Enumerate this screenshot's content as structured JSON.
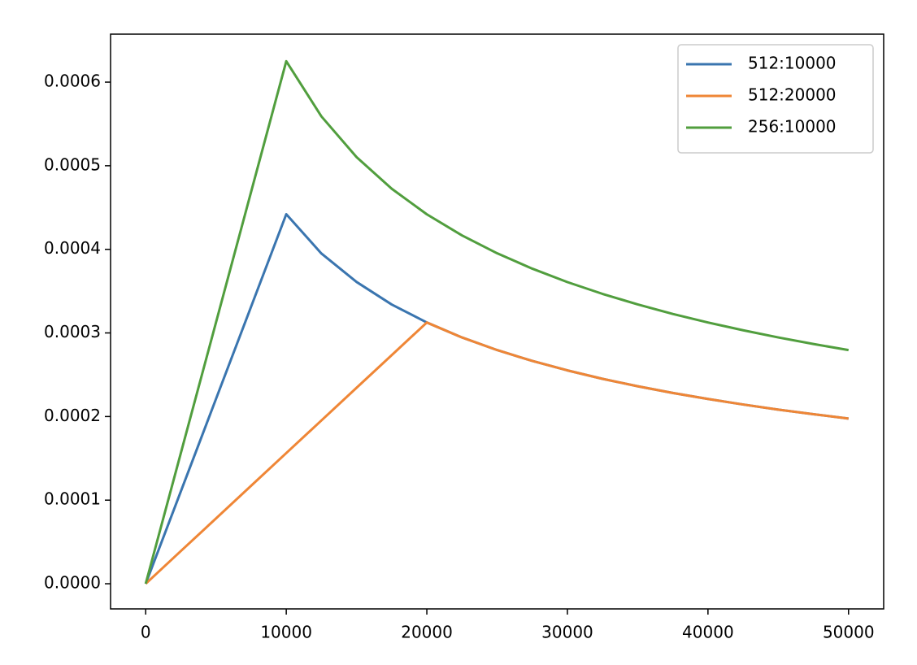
{
  "chart_data": {
    "type": "line",
    "x": [
      0,
      2500,
      5000,
      7500,
      10000,
      12500,
      15000,
      17500,
      20000,
      22500,
      25000,
      27500,
      30000,
      32500,
      35000,
      37500,
      40000,
      42500,
      45000,
      47500,
      50000
    ],
    "series": [
      {
        "name": "512:10000",
        "color": "#3a75af",
        "values": [
          0,
          0.0001105,
          0.000221,
          0.0003315,
          0.000442,
          0.000395,
          0.000361,
          0.000334,
          0.0003125,
          0.0002946,
          0.0002795,
          0.0002665,
          0.0002552,
          0.0002451,
          0.0002362,
          0.0002282,
          0.000221,
          0.0002144,
          0.0002083,
          0.0002028,
          0.0001976
        ]
      },
      {
        "name": "512:20000",
        "color": "#ef8636",
        "values": [
          0,
          3.91e-05,
          7.81e-05,
          0.0001172,
          0.0001563,
          0.0001953,
          0.0002344,
          0.0002734,
          0.0003125,
          0.0002946,
          0.0002795,
          0.0002665,
          0.0002552,
          0.0002451,
          0.0002362,
          0.0002282,
          0.000221,
          0.0002144,
          0.0002083,
          0.0002028,
          0.0001976
        ]
      },
      {
        "name": "256:10000",
        "color": "#519e3e",
        "values": [
          0,
          0.0001563,
          0.0003125,
          0.0004688,
          0.000625,
          0.000559,
          0.0005103,
          0.0004725,
          0.0004419,
          0.0004167,
          0.0003953,
          0.0003769,
          0.0003608,
          0.0003467,
          0.0003341,
          0.0003227,
          0.0003125,
          0.0003032,
          0.0002946,
          0.0002868,
          0.0002795
        ]
      }
    ],
    "xlim": [
      -2500,
      52500
    ],
    "xticks": [
      0,
      10000,
      20000,
      30000,
      40000,
      50000
    ],
    "ylim": [
      -3.01e-05,
      0.0006574
    ],
    "yticks": [
      {
        "value": 0,
        "label": "0.0000"
      },
      {
        "value": 0.0001,
        "label": "0.0001"
      },
      {
        "value": 0.0002,
        "label": "0.0002"
      },
      {
        "value": 0.0003,
        "label": "0.0003"
      },
      {
        "value": 0.0004,
        "label": "0.0004"
      },
      {
        "value": 0.0005,
        "label": "0.0005"
      },
      {
        "value": 0.0006,
        "label": "0.0006"
      }
    ],
    "legend": "upper right",
    "grid": false
  }
}
